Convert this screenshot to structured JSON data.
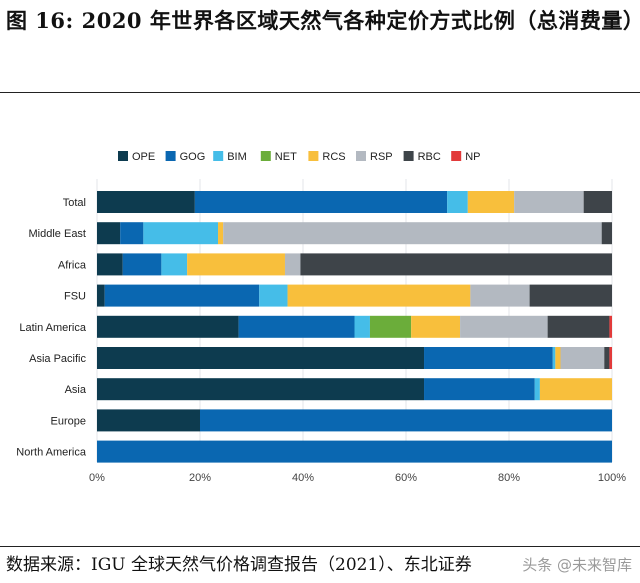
{
  "figure": {
    "title": "图 16: 2020 年世界各区域天然气各种定价方式比例（总消费量）",
    "source": "数据来源：IGU 全球天然气价格调查报告（2021）、东北证券",
    "watermark": "头条 @未来智库"
  },
  "chart_data": {
    "type": "bar",
    "orientation": "horizontal",
    "stacked": true,
    "categories": [
      "Total",
      "Middle East",
      "Africa",
      "FSU",
      "Latin America",
      "Asia Pacific",
      "Asia",
      "Europe",
      "North America"
    ],
    "x_ticks": [
      "0%",
      "20%",
      "40%",
      "60%",
      "80%",
      "100%"
    ],
    "xlim": [
      0,
      100
    ],
    "legend_position": "top",
    "grid": true,
    "series": [
      {
        "name": "OPE",
        "color": "#0d3b4f",
        "values": [
          19,
          4.5,
          5,
          1.5,
          27.5,
          63.5,
          63.5,
          20,
          0
        ]
      },
      {
        "name": "GOG",
        "color": "#0a67b1",
        "values": [
          49,
          4.5,
          7.5,
          30,
          22.5,
          25,
          21.5,
          80,
          100
        ]
      },
      {
        "name": "BIM",
        "color": "#45bde8",
        "values": [
          4,
          14.5,
          5,
          5.5,
          3,
          0.5,
          1,
          0,
          0
        ]
      },
      {
        "name": "NET",
        "color": "#6bad3a",
        "values": [
          0,
          0,
          0,
          0,
          8,
          0,
          0,
          0,
          0
        ]
      },
      {
        "name": "RCS",
        "color": "#f8bf3c",
        "values": [
          9,
          1,
          19,
          35.5,
          9.5,
          1,
          14,
          0,
          0
        ]
      },
      {
        "name": "RSP",
        "color": "#b3b9c1",
        "values": [
          13.5,
          73.5,
          3,
          11.5,
          17,
          8.5,
          0,
          0,
          0
        ]
      },
      {
        "name": "RBC",
        "color": "#3e4449",
        "values": [
          5.5,
          2,
          60.5,
          16,
          12,
          1,
          0,
          0,
          0
        ]
      },
      {
        "name": "NP",
        "color": "#e23a3a",
        "values": [
          0,
          0,
          0,
          0,
          0.5,
          0.5,
          0,
          0,
          0
        ]
      }
    ]
  }
}
